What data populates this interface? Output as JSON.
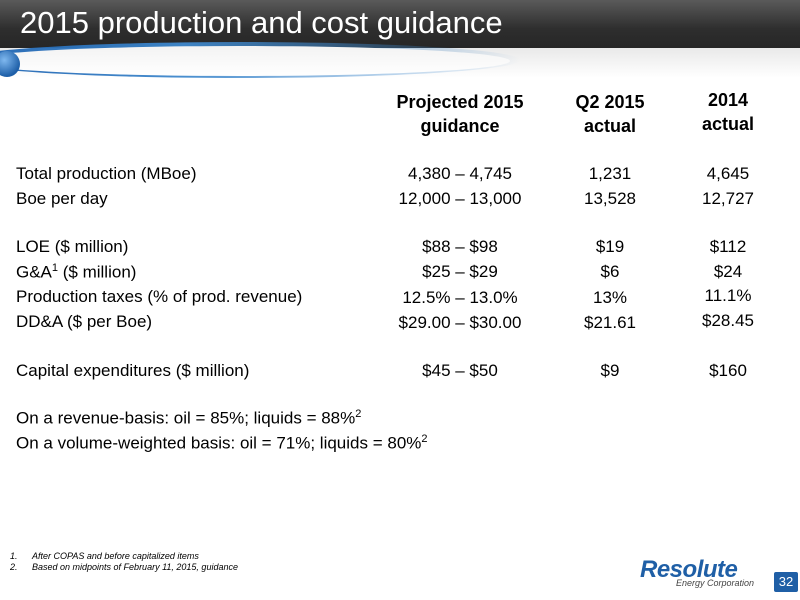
{
  "header": {
    "title": "2015 production and cost guidance"
  },
  "columns": [
    {
      "line1": "Projected 2015",
      "line2": "guidance"
    },
    {
      "line1": "Q2 2015",
      "line2": "actual"
    },
    {
      "line1": "2014",
      "line2": "actual"
    }
  ],
  "rows": [
    {
      "label": "Total production (MBoe)",
      "sup": "",
      "label_rest": "",
      "v1": "4,380 – 4,745",
      "v2": "1,231",
      "v3": "4,645"
    },
    {
      "label": "Boe per day",
      "sup": "",
      "label_rest": "",
      "v1": "12,000 – 13,000",
      "v2": "13,528",
      "v3": "12,727"
    },
    {
      "label": "LOE ($ million)",
      "sup": "",
      "label_rest": "",
      "v1": "$88 – $98",
      "v2": "$19",
      "v3": "$112"
    },
    {
      "label": "G&A",
      "sup": "1",
      "label_rest": " ($ million)",
      "v1": "$25 – $29",
      "v2": "$6",
      "v3": "$24"
    },
    {
      "label": "Production taxes (% of prod. revenue)",
      "sup": "",
      "label_rest": "",
      "v1": "12.5% – 13.0%",
      "v2": "13%",
      "v3": "11.1%"
    },
    {
      "label": "DD&A ($ per Boe)",
      "sup": "",
      "label_rest": "",
      "v1": "$29.00 – $30.00",
      "v2": "$21.61",
      "v3": "$28.45"
    },
    {
      "label": "Capital expenditures ($ million)",
      "sup": "",
      "label_rest": "",
      "v1": "$45 – $50",
      "v2": "$9",
      "v3": "$160"
    }
  ],
  "notes": [
    {
      "text": "On a revenue-basis: oil = 85%; liquids = 88%",
      "sup": "2"
    },
    {
      "text": "On a volume-weighted basis: oil = 71%; liquids = 80%",
      "sup": "2"
    }
  ],
  "footnotes": [
    {
      "num": "1.",
      "text": "After COPAS and before capitalized items"
    },
    {
      "num": "2.",
      "text": "Based on midpoints of February 11, 2015, guidance"
    }
  ],
  "logo": {
    "name": "Resolute",
    "subtitle": "Energy Corporation"
  },
  "page_number": "32",
  "colors": {
    "brand_blue": "#1f5fa6",
    "header_dark": "#2e2e2e"
  }
}
